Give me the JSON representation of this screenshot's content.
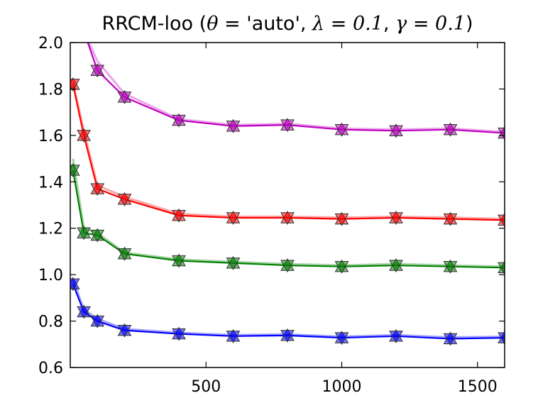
{
  "chart_data": {
    "type": "line",
    "title": {
      "prefix": "RRCM-loo (",
      "theta": "θ",
      "theta_eq": " = ",
      "theta_val": "'auto'",
      "sep1": ", ",
      "lambda": "λ",
      "lambda_eq": " = ",
      "lambda_val": "0.1",
      "sep2": ", ",
      "gamma": "γ",
      "gamma_eq": " = ",
      "gamma_val": "0.1",
      "suffix": ")"
    },
    "xlabel": "",
    "ylabel": "",
    "xlim": [
      0,
      1600
    ],
    "ylim": [
      0.6,
      2.0
    ],
    "xticks": [
      500,
      1000,
      1500
    ],
    "yticks": [
      0.6,
      0.8,
      1.0,
      1.2,
      1.4,
      1.6,
      1.8,
      2.0
    ],
    "grid": false,
    "x": [
      10,
      50,
      100,
      200,
      400,
      600,
      800,
      1000,
      1200,
      1400,
      1600
    ],
    "series": [
      {
        "color": "#bf00bf",
        "values": [
          2.15,
          2.05,
          1.88,
          1.765,
          1.665,
          1.64,
          1.645,
          1.625,
          1.62,
          1.625,
          1.61
        ],
        "band": [
          2.15,
          2.05,
          1.92,
          1.78,
          1.67,
          1.645,
          1.65,
          1.63,
          1.625,
          1.63,
          1.615
        ]
      },
      {
        "color": "#ff0000",
        "values": [
          1.82,
          1.6,
          1.37,
          1.325,
          1.255,
          1.245,
          1.245,
          1.24,
          1.245,
          1.24,
          1.235
        ],
        "band": [
          1.83,
          1.62,
          1.385,
          1.335,
          1.262,
          1.25,
          1.25,
          1.246,
          1.25,
          1.246,
          1.24
        ]
      },
      {
        "color": "#008000",
        "values": [
          1.45,
          1.18,
          1.17,
          1.09,
          1.06,
          1.05,
          1.04,
          1.035,
          1.04,
          1.035,
          1.03
        ],
        "band": [
          1.5,
          1.2,
          1.18,
          1.095,
          1.066,
          1.055,
          1.046,
          1.04,
          1.046,
          1.04,
          1.035
        ]
      },
      {
        "color": "#0000ff",
        "values": [
          0.96,
          0.84,
          0.8,
          0.76,
          0.745,
          0.735,
          0.738,
          0.728,
          0.735,
          0.724,
          0.728
        ],
        "band": [
          0.98,
          0.85,
          0.81,
          0.766,
          0.75,
          0.74,
          0.743,
          0.733,
          0.74,
          0.73,
          0.733
        ]
      }
    ]
  }
}
